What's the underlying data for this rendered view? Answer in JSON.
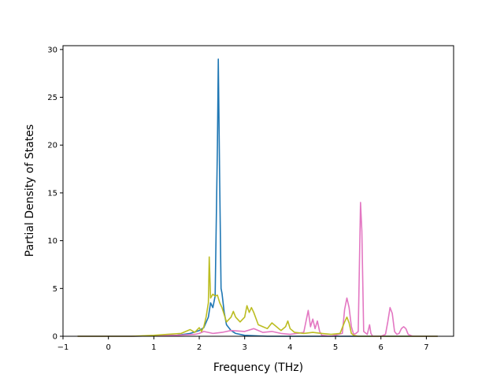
{
  "chart_data": {
    "type": "line",
    "title": "",
    "xlabel": "Frequency (THz)",
    "ylabel": "Partial Density of States",
    "xlim": [
      -1.0,
      7.6
    ],
    "ylim": [
      0,
      30.4
    ],
    "xticks": [
      -1,
      0,
      1,
      2,
      3,
      4,
      5,
      6,
      7
    ],
    "yticks": [
      0,
      5,
      10,
      15,
      20,
      25,
      30
    ],
    "grid": false,
    "legend": "none",
    "series": [
      {
        "color": "#1f77b4",
        "x": [
          -0.68,
          0.5,
          1.0,
          1.5,
          1.8,
          2.0,
          2.1,
          2.2,
          2.25,
          2.3,
          2.35,
          2.4,
          2.42,
          2.45,
          2.48,
          2.5,
          2.55,
          2.6,
          2.7,
          2.8,
          3.0,
          3.5,
          4.0,
          5.0,
          6.0,
          7.25
        ],
        "y": [
          0,
          0,
          0.05,
          0.1,
          0.3,
          0.6,
          0.9,
          2.0,
          3.5,
          3.0,
          4.2,
          20.0,
          29.0,
          16.0,
          5.0,
          4.5,
          2.5,
          1.2,
          0.6,
          0.3,
          0.1,
          0,
          0,
          0,
          0,
          0
        ]
      },
      {
        "color": "#e377c2",
        "x": [
          -0.68,
          0.5,
          1.0,
          1.5,
          1.9,
          2.0,
          2.1,
          2.2,
          2.3,
          2.5,
          2.7,
          3.0,
          3.2,
          3.4,
          3.6,
          3.8,
          4.0,
          4.3,
          4.4,
          4.45,
          4.5,
          4.55,
          4.6,
          4.65,
          4.7,
          4.9,
          5.15,
          5.2,
          5.25,
          5.3,
          5.35,
          5.4,
          5.45,
          5.5,
          5.55,
          5.58,
          5.62,
          5.7,
          5.75,
          5.78,
          5.82,
          6.0,
          6.1,
          6.15,
          6.2,
          6.25,
          6.3,
          6.35,
          6.4,
          6.45,
          6.5,
          6.55,
          6.6,
          6.7,
          7.25
        ],
        "y": [
          0,
          0,
          0.05,
          0.1,
          0.2,
          0.3,
          0.5,
          0.4,
          0.3,
          0.4,
          0.6,
          0.5,
          0.8,
          0.4,
          0.5,
          0.3,
          0.2,
          0.4,
          2.7,
          1.0,
          1.8,
          0.8,
          1.6,
          0.5,
          0.1,
          0,
          0.3,
          2.8,
          4.0,
          3.0,
          1.0,
          0.2,
          0.3,
          0.5,
          14.0,
          11.0,
          0.5,
          0.2,
          1.2,
          0.3,
          0,
          0,
          0.2,
          1.5,
          3.0,
          2.4,
          0.5,
          0.2,
          0.3,
          0.8,
          1.0,
          0.8,
          0.2,
          0,
          0
        ]
      },
      {
        "color": "#bcbd22",
        "x": [
          -0.68,
          0.5,
          1.0,
          1.3,
          1.6,
          1.8,
          1.9,
          2.0,
          2.05,
          2.1,
          2.15,
          2.2,
          2.22,
          2.25,
          2.3,
          2.35,
          2.4,
          2.45,
          2.5,
          2.6,
          2.7,
          2.75,
          2.8,
          2.9,
          3.0,
          3.05,
          3.1,
          3.15,
          3.2,
          3.3,
          3.4,
          3.5,
          3.6,
          3.7,
          3.8,
          3.9,
          3.95,
          4.0,
          4.1,
          4.3,
          4.5,
          4.7,
          4.9,
          5.1,
          5.2,
          5.25,
          5.3,
          5.35,
          5.4,
          5.5,
          6.0,
          7.25
        ],
        "y": [
          0,
          0,
          0.1,
          0.2,
          0.3,
          0.7,
          0.4,
          0.9,
          0.5,
          1.0,
          2.0,
          3.5,
          8.3,
          4.0,
          4.4,
          4.2,
          4.3,
          3.5,
          3.0,
          1.5,
          2.0,
          2.6,
          2.0,
          1.5,
          2.0,
          3.2,
          2.5,
          3.0,
          2.5,
          1.2,
          1.0,
          0.8,
          1.4,
          1.0,
          0.6,
          1.0,
          1.6,
          0.8,
          0.4,
          0.3,
          0.4,
          0.3,
          0.2,
          0.3,
          1.5,
          2.0,
          1.4,
          0.3,
          0.1,
          0,
          0,
          0
        ]
      }
    ]
  }
}
